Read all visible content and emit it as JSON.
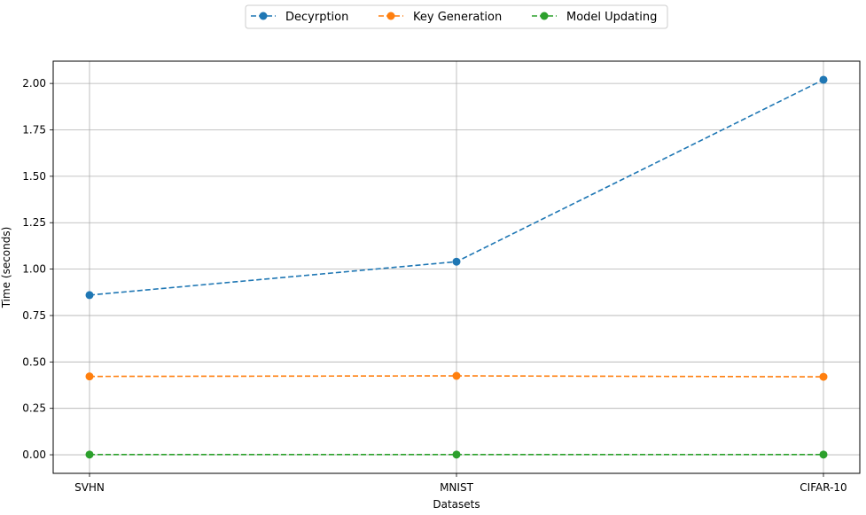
{
  "chart_data": {
    "type": "line",
    "title": "",
    "xlabel": "Datasets",
    "ylabel": "Time (seconds)",
    "categories": [
      "SVHN",
      "MNIST",
      "CIFAR-10"
    ],
    "ylim": [
      -0.1,
      2.12
    ],
    "yticks": [
      "0.00",
      "0.25",
      "0.50",
      "0.75",
      "1.00",
      "1.25",
      "1.50",
      "1.75",
      "2.00"
    ],
    "grid": true,
    "legend_position": "top-center",
    "series": [
      {
        "name": "Decyrption",
        "color": "#1f77b4",
        "values": [
          0.86,
          1.04,
          2.02
        ]
      },
      {
        "name": "Key Generation",
        "color": "#ff7f0e",
        "values": [
          0.422,
          0.425,
          0.42
        ]
      },
      {
        "name": "Model Updating",
        "color": "#2ca02c",
        "values": [
          0.001,
          0.001,
          0.001
        ]
      }
    ]
  }
}
